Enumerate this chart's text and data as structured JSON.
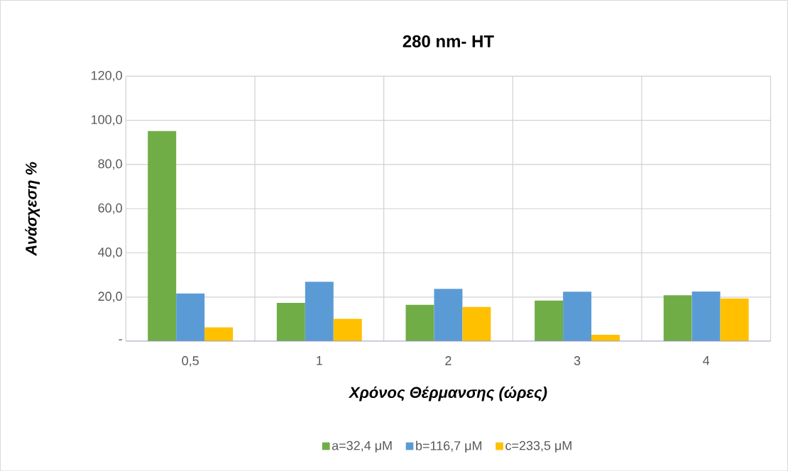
{
  "chart_data": {
    "type": "bar",
    "title": "280 nm- HT",
    "xlabel": "Χρόνος Θέρμανσης (ώρες)",
    "ylabel": "Ανάσχεση %",
    "categories": [
      "0,5",
      "1",
      "2",
      "3",
      "4"
    ],
    "series": [
      {
        "name": "a=32,4 μM",
        "color": "#70ad47",
        "values": [
          95.2,
          17.4,
          16.5,
          18.4,
          20.8
        ]
      },
      {
        "name": "b=116,7 μM",
        "color": "#5b9bd5",
        "values": [
          21.6,
          26.9,
          23.7,
          22.4,
          22.5
        ]
      },
      {
        "name": "c=233,5 μM",
        "color": "#ffc000",
        "values": [
          6.3,
          10.1,
          15.5,
          2.9,
          19.4
        ]
      }
    ],
    "ylim": [
      0,
      120
    ],
    "yticks": [
      {
        "value": 0,
        "label": "-"
      },
      {
        "value": 20,
        "label": "20,0"
      },
      {
        "value": 40,
        "label": "40,0"
      },
      {
        "value": 60,
        "label": "60,0"
      },
      {
        "value": 80,
        "label": "80,0"
      },
      {
        "value": 100,
        "label": "100,0"
      },
      {
        "value": 120,
        "label": "120,0"
      }
    ],
    "grid": true,
    "legend": "bottom"
  }
}
